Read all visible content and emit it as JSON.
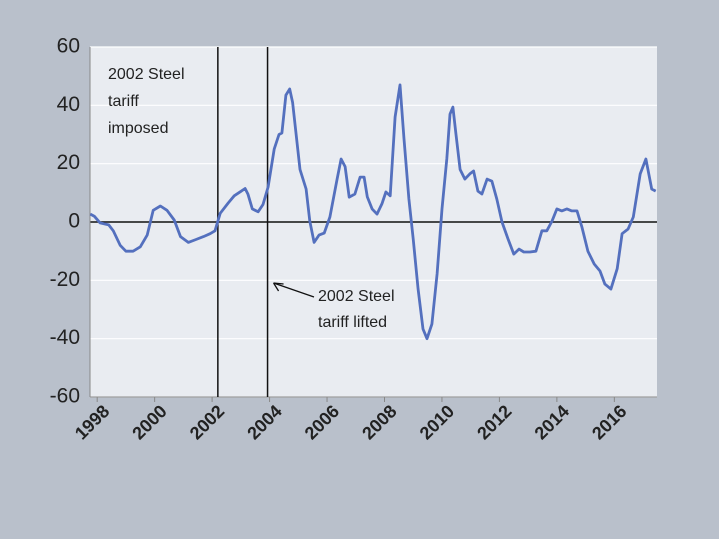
{
  "chart_data": {
    "type": "line",
    "series": [
      {
        "name": "",
        "color": "#5470be",
        "x": [
          1997.76,
          1997.9,
          1998.1,
          1998.4,
          1998.56,
          1998.8,
          1999.0,
          1999.25,
          1999.5,
          1999.74,
          1999.95,
          2000.2,
          2000.43,
          2000.68,
          2000.9,
          2001.17,
          2001.44,
          2001.7,
          2001.93,
          2002.1,
          2002.28,
          2002.56,
          2002.77,
          2003.0,
          2003.15,
          2003.25,
          2003.4,
          2003.6,
          2003.77,
          2003.95,
          2004.16,
          2004.33,
          2004.43,
          2004.57,
          2004.7,
          2004.8,
          2005.06,
          2005.27,
          2005.4,
          2005.55,
          2005.72,
          2005.9,
          2006.1,
          2006.35,
          2006.49,
          2006.63,
          2006.77,
          2006.97,
          2007.15,
          2007.29,
          2007.4,
          2007.57,
          2007.74,
          2007.91,
          2008.05,
          2008.2,
          2008.37,
          2008.54,
          2008.68,
          2008.85,
          2009.0,
          2009.17,
          2009.34,
          2009.48,
          2009.65,
          2009.83,
          2010.0,
          2010.17,
          2010.28,
          2010.38,
          2010.49,
          2010.63,
          2010.8,
          2010.97,
          2011.1,
          2011.25,
          2011.39,
          2011.57,
          2011.74,
          2011.91,
          2012.09,
          2012.3,
          2012.5,
          2012.68,
          2012.85,
          2013.06,
          2013.27,
          2013.48,
          2013.65,
          2013.83,
          2014.0,
          2014.17,
          2014.35,
          2014.52,
          2014.7,
          2014.87,
          2015.08,
          2015.3,
          2015.5,
          2015.67,
          2015.88,
          2016.1,
          2016.27,
          2016.48,
          2016.66,
          2016.9,
          2017.1,
          2017.3,
          2017.44
        ],
        "values": [
          2.7,
          2,
          -0.3,
          -1,
          -3,
          -8,
          -10,
          -10,
          -8.5,
          -4.5,
          4,
          5.5,
          4,
          0.7,
          -5,
          -7,
          -6,
          -5,
          -4,
          -3,
          3,
          6.5,
          9,
          10.5,
          11.5,
          9.5,
          4.5,
          3.5,
          6,
          12,
          25,
          30,
          30.5,
          43.5,
          45.6,
          41,
          18,
          11.3,
          0.3,
          -7,
          -4.5,
          -3.8,
          1.7,
          14.7,
          21.6,
          19,
          8.5,
          9.6,
          15.4,
          15.4,
          8.6,
          4.5,
          2.7,
          6.2,
          10.3,
          9,
          36,
          47,
          28.5,
          7.9,
          -5.8,
          -23,
          -36.7,
          -40,
          -35,
          -17.8,
          4.5,
          21.6,
          37,
          39.4,
          30,
          18,
          14.7,
          16.5,
          17.5,
          10.6,
          9.6,
          14.7,
          14,
          7.9,
          0,
          -5.8,
          -11,
          -9.3,
          -10.3,
          -10.3,
          -10,
          -3,
          -3,
          0.3,
          4.5,
          3.8,
          4.5,
          3.8,
          3.8,
          -1.7,
          -10,
          -14.4,
          -16.8,
          -21.3,
          -23,
          -16,
          -4,
          -2.4,
          1.7,
          16.5,
          21.6,
          11.3,
          10.6
        ]
      }
    ],
    "xlim": [
      1997.75,
      2017.45
    ],
    "xticks": [
      1998,
      2000,
      2002,
      2004,
      2006,
      2008,
      2010,
      2012,
      2014,
      2016
    ],
    "ylim": [
      -60,
      60
    ],
    "yticks": [
      -60,
      -40,
      -20,
      0,
      20,
      40,
      60
    ],
    "grid": true,
    "annotations": [
      {
        "x": 2002.2,
        "lines": [
          "2002 Steel",
          "tariff",
          "imposed"
        ]
      },
      {
        "x": 2003.93,
        "lines": [
          "2002 Steel",
          "tariff lifted"
        ]
      }
    ]
  }
}
